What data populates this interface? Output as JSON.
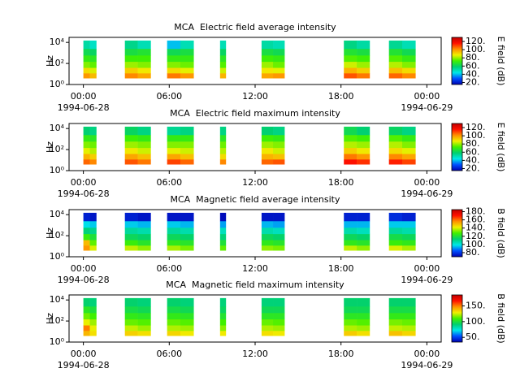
{
  "chart_data": [
    {
      "type": "spectrogram",
      "title": "MCA  Electric field average intensity",
      "ylabel": "Hz",
      "xlim": [
        -1,
        25
      ],
      "xticks": [
        {
          "value": 0,
          "label": "00:00\n1994-06-28"
        },
        {
          "value": 6,
          "label": "06:00"
        },
        {
          "value": 12,
          "label": "12:00"
        },
        {
          "value": 18,
          "label": "18:00"
        },
        {
          "value": 24,
          "label": "00:00\n1994-06-29"
        }
      ],
      "ylim": [
        1,
        30000
      ],
      "log_y": true,
      "yticks": [
        {
          "value": 1,
          "label": "10⁰"
        },
        {
          "value": 100,
          "label": "10²"
        },
        {
          "value": 10000,
          "label": "10⁴"
        }
      ],
      "colormap": [
        "#0000b0",
        "#0050ff",
        "#00e8e8",
        "#00d070",
        "#40f000",
        "#f0f000",
        "#ff9000",
        "#ff1000",
        "#c00000"
      ],
      "colorbar": {
        "label": "E field (dB)",
        "clim": [
          15,
          130
        ],
        "ticks": [
          {
            "value": 20,
            "label": "20."
          },
          {
            "value": 40,
            "label": "40."
          },
          {
            "value": 60,
            "label": "60."
          },
          {
            "value": 80,
            "label": "80."
          },
          {
            "value": 100,
            "label": "100."
          },
          {
            "value": 120,
            "label": "120."
          }
        ]
      },
      "freq_edges": [
        4,
        12,
        40,
        150,
        600,
        2500,
        15000
      ],
      "segments": [
        {
          "start": 0,
          "end": 0.9,
          "values": [
            [
              100,
              90,
              78,
              70,
              62,
              52
            ],
            [
              95,
              85,
              75,
              68,
              60,
              48
            ]
          ]
        },
        {
          "start": 2.9,
          "end": 4.7,
          "values": [
            [
              102,
              92,
              80,
              72,
              64,
              55
            ],
            [
              98,
              88,
              78,
              72,
              66,
              50
            ]
          ]
        },
        {
          "start": 5.85,
          "end": 7.7,
          "values": [
            [
              104,
              90,
              78,
              70,
              62,
              40
            ],
            [
              100,
              86,
              76,
              70,
              64,
              50
            ]
          ]
        },
        {
          "start": 9.55,
          "end": 9.95,
          "values": [
            [
              96,
              84,
              74,
              68,
              60,
              50
            ]
          ]
        },
        {
          "start": 12.45,
          "end": 14.05,
          "values": [
            [
              98,
              88,
              80,
              72,
              64,
              52
            ],
            [
              100,
              86,
              76,
              70,
              62,
              50
            ]
          ]
        },
        {
          "start": 18.2,
          "end": 20.0,
          "values": [
            [
              108,
              96,
              84,
              74,
              66,
              56
            ],
            [
              104,
              92,
              80,
              72,
              64,
              52
            ]
          ]
        },
        {
          "start": 21.35,
          "end": 23.2,
          "values": [
            [
              106,
              94,
              82,
              74,
              66,
              54
            ],
            [
              102,
              90,
              78,
              70,
              62,
              50
            ]
          ]
        }
      ]
    },
    {
      "type": "spectrogram",
      "title": "MCA  Electric field maximum intensity",
      "ylabel": "Hz",
      "xlim": [
        -1,
        25
      ],
      "xticks": [
        {
          "value": 0,
          "label": "00:00\n1994-06-28"
        },
        {
          "value": 6,
          "label": "06:00"
        },
        {
          "value": 12,
          "label": "12:00"
        },
        {
          "value": 18,
          "label": "18:00"
        },
        {
          "value": 24,
          "label": "00:00\n1994-06-29"
        }
      ],
      "ylim": [
        1,
        30000
      ],
      "log_y": true,
      "yticks": [
        {
          "value": 1,
          "label": "10⁰"
        },
        {
          "value": 100,
          "label": "10²"
        },
        {
          "value": 10000,
          "label": "10⁴"
        }
      ],
      "colormap": [
        "#0000b0",
        "#0050ff",
        "#00e8e8",
        "#00d070",
        "#40f000",
        "#f0f000",
        "#ff9000",
        "#ff1000",
        "#c00000"
      ],
      "colorbar": {
        "label": "E field (dB)",
        "clim": [
          15,
          130
        ],
        "ticks": [
          {
            "value": 20,
            "label": "20."
          },
          {
            "value": 40,
            "label": "40."
          },
          {
            "value": 60,
            "label": "60."
          },
          {
            "value": 80,
            "label": "80."
          },
          {
            "value": 100,
            "label": "100."
          },
          {
            "value": 120,
            "label": "120."
          }
        ]
      },
      "freq_edges": [
        4,
        12,
        40,
        150,
        600,
        2500,
        15000
      ],
      "segments": [
        {
          "start": 0,
          "end": 0.9,
          "values": [
            [
              106,
              96,
              86,
              78,
              70,
              58
            ],
            [
              102,
              92,
              82,
              76,
              68,
              56
            ]
          ]
        },
        {
          "start": 2.9,
          "end": 4.7,
          "values": [
            [
              108,
              98,
              88,
              80,
              72,
              60
            ],
            [
              104,
              94,
              84,
              78,
              70,
              56
            ]
          ]
        },
        {
          "start": 5.85,
          "end": 7.7,
          "values": [
            [
              110,
              98,
              86,
              78,
              70,
              54
            ],
            [
              106,
              94,
              84,
              78,
              70,
              56
            ]
          ]
        },
        {
          "start": 9.55,
          "end": 9.95,
          "values": [
            [
              102,
              90,
              82,
              76,
              68,
              56
            ]
          ]
        },
        {
          "start": 12.45,
          "end": 14.05,
          "values": [
            [
              106,
              96,
              88,
              80,
              72,
              58
            ],
            [
              108,
              94,
              84,
              78,
              70,
              56
            ]
          ]
        },
        {
          "start": 18.2,
          "end": 20.0,
          "values": [
            [
              116,
              104,
              92,
              82,
              74,
              62
            ],
            [
              112,
              100,
              88,
              80,
              72,
              58
            ]
          ]
        },
        {
          "start": 21.35,
          "end": 23.2,
          "values": [
            [
              114,
              102,
              90,
              82,
              74,
              60
            ],
            [
              110,
              98,
              86,
              78,
              70,
              56
            ]
          ]
        }
      ]
    },
    {
      "type": "spectrogram",
      "title": "MCA  Magnetic field average intensity",
      "ylabel": "Hz",
      "xlim": [
        -1,
        25
      ],
      "xticks": [
        {
          "value": 0,
          "label": "00:00\n1994-06-28"
        },
        {
          "value": 6,
          "label": "06:00"
        },
        {
          "value": 12,
          "label": "12:00"
        },
        {
          "value": 18,
          "label": "18:00"
        },
        {
          "value": 24,
          "label": "00:00\n1994-06-29"
        }
      ],
      "ylim": [
        1,
        30000
      ],
      "log_y": true,
      "yticks": [
        {
          "value": 1,
          "label": "10⁰"
        },
        {
          "value": 100,
          "label": "10²"
        },
        {
          "value": 10000,
          "label": "10⁴"
        }
      ],
      "colormap": [
        "#0000b0",
        "#0050ff",
        "#00e8e8",
        "#00d070",
        "#40f000",
        "#f0f000",
        "#ff9000",
        "#ff1000",
        "#c00000"
      ],
      "colorbar": {
        "label": "B field (dB)",
        "clim": [
          70,
          185
        ],
        "ticks": [
          {
            "value": 80,
            "label": "80."
          },
          {
            "value": 100,
            "label": "100."
          },
          {
            "value": 120,
            "label": "120."
          },
          {
            "value": 140,
            "label": "140."
          },
          {
            "value": 160,
            "label": "160."
          },
          {
            "value": 180,
            "label": "180."
          }
        ]
      },
      "freq_edges": [
        4,
        12,
        40,
        150,
        600,
        2500,
        15000
      ],
      "segments": [
        {
          "start": 0,
          "end": 0.9,
          "values": [
            [
              155,
              150,
              126,
              112,
              98,
              76
            ],
            [
              140,
              130,
              120,
              110,
              96,
              74
            ]
          ]
        },
        {
          "start": 2.9,
          "end": 4.7,
          "values": [
            [
              138,
              126,
              116,
              108,
              96,
              76
            ],
            [
              134,
              122,
              114,
              106,
              94,
              74
            ]
          ]
        },
        {
          "start": 5.85,
          "end": 7.7,
          "values": [
            [
              136,
              124,
              116,
              108,
              96,
              74
            ],
            [
              132,
              122,
              114,
              106,
              94,
              74
            ]
          ]
        },
        {
          "start": 9.55,
          "end": 9.95,
          "values": [
            [
              130,
              120,
              112,
              104,
              92,
              72
            ]
          ]
        },
        {
          "start": 12.45,
          "end": 14.05,
          "values": [
            [
              134,
              124,
              116,
              106,
              94,
              74
            ],
            [
              132,
              122,
              114,
              104,
              92,
              74
            ]
          ]
        },
        {
          "start": 18.2,
          "end": 20.0,
          "values": [
            [
              138,
              124,
              116,
              106,
              94,
              76
            ],
            [
              134,
              122,
              114,
              104,
              94,
              76
            ]
          ]
        },
        {
          "start": 21.35,
          "end": 23.2,
          "values": [
            [
              140,
              126,
              118,
              108,
              96,
              78
            ],
            [
              136,
              124,
              116,
              106,
              96,
              76
            ]
          ]
        }
      ]
    },
    {
      "type": "spectrogram",
      "title": "MCA  Magnetic field maximum intensity",
      "ylabel": "Hz",
      "xlim": [
        -1,
        25
      ],
      "xticks": [
        {
          "value": 0,
          "label": "00:00\n1994-06-28"
        },
        {
          "value": 6,
          "label": "06:00"
        },
        {
          "value": 12,
          "label": "12:00"
        },
        {
          "value": 18,
          "label": "18:00"
        },
        {
          "value": 24,
          "label": "00:00\n1994-06-29"
        }
      ],
      "ylim": [
        1,
        30000
      ],
      "log_y": true,
      "yticks": [
        {
          "value": 1,
          "label": "10⁰"
        },
        {
          "value": 100,
          "label": "10²"
        },
        {
          "value": 10000,
          "label": "10⁴"
        }
      ],
      "colormap": [
        "#0000b0",
        "#0050ff",
        "#00e8e8",
        "#00d070",
        "#40f000",
        "#f0f000",
        "#ff9000",
        "#ff1000",
        "#c00000"
      ],
      "colorbar": {
        "label": "B field (dB)",
        "clim": [
          35,
          185
        ],
        "ticks": [
          {
            "value": 50,
            "label": "50."
          },
          {
            "value": 100,
            "label": "100."
          },
          {
            "value": 150,
            "label": "150."
          }
        ]
      },
      "freq_edges": [
        4,
        12,
        40,
        150,
        600,
        2500,
        15000
      ],
      "segments": [
        {
          "start": 0,
          "end": 0.9,
          "values": [
            [
              140,
              150,
              128,
              115,
              104,
              92
            ],
            [
              132,
              128,
              120,
              110,
              100,
              90
            ]
          ]
        },
        {
          "start": 2.9,
          "end": 4.7,
          "values": [
            [
              135,
              124,
              114,
              106,
              98,
              92
            ],
            [
              132,
              120,
              112,
              104,
              96,
              90
            ]
          ]
        },
        {
          "start": 5.85,
          "end": 7.7,
          "values": [
            [
              134,
              122,
              114,
              106,
              98,
              92
            ],
            [
              130,
              120,
              112,
              104,
              96,
              90
            ]
          ]
        },
        {
          "start": 9.55,
          "end": 9.95,
          "values": [
            [
              130,
              118,
              110,
              102,
              94,
              90
            ]
          ]
        },
        {
          "start": 12.45,
          "end": 14.05,
          "values": [
            [
              132,
              122,
              114,
              104,
              96,
              90
            ],
            [
              130,
              120,
              112,
              104,
              96,
              90
            ]
          ]
        },
        {
          "start": 18.2,
          "end": 20.0,
          "values": [
            [
              136,
              122,
              114,
              104,
              96,
              92
            ],
            [
              132,
              120,
              112,
              104,
              96,
              92
            ]
          ]
        },
        {
          "start": 21.35,
          "end": 23.2,
          "values": [
            [
              138,
              124,
              116,
              106,
              98,
              92
            ],
            [
              134,
              122,
              114,
              106,
              98,
              92
            ]
          ]
        }
      ]
    }
  ]
}
